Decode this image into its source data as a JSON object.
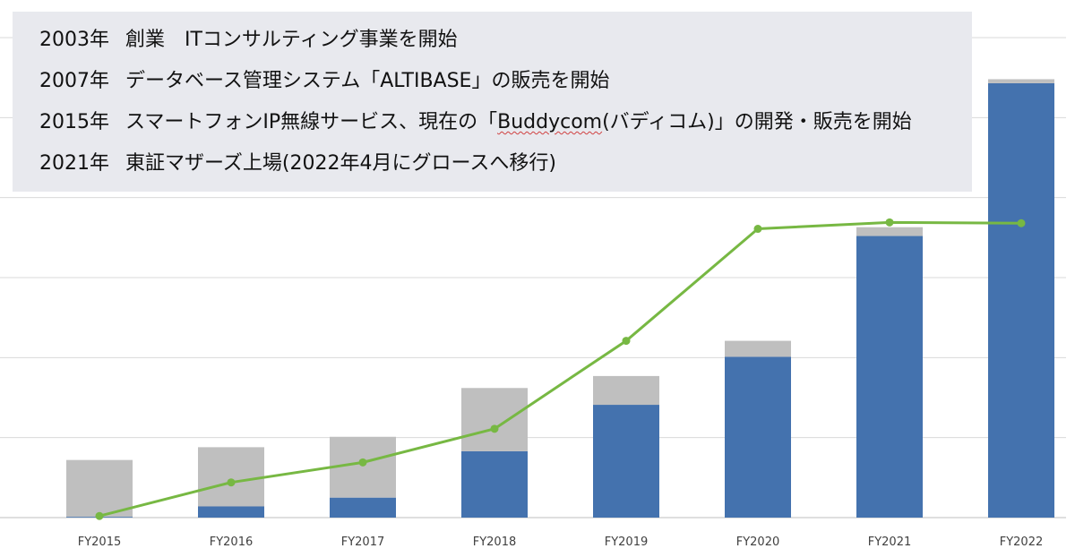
{
  "history": [
    {
      "year": "2003年",
      "text": "創業　ITコンサルティング事業を開始"
    },
    {
      "year": "2007年",
      "text": "データベース管理システム「ALTIBASE」の販売を開始"
    },
    {
      "year": "2015年",
      "text_before": "スマートフォンIP無線サービス、現在の「",
      "text_marked": "Buddycom",
      "text_after": "(バディコム)」の開発・販売を開始"
    },
    {
      "year": "2021年",
      "text": "東証マザーズ上場(2022年4月にグロースへ移行)"
    }
  ],
  "chart_data": {
    "type": "bar",
    "stacked": true,
    "categories": [
      "FY2015",
      "FY2016",
      "FY2017",
      "FY2018",
      "FY2019",
      "FY2020",
      "FY2021",
      "FY2022"
    ],
    "series": [
      {
        "kind": "bar",
        "color": "#4472ae",
        "values": [
          0.1,
          1.4,
          2.5,
          8.3,
          14.1,
          20.1,
          35.2,
          54.3
        ]
      },
      {
        "kind": "bar",
        "color": "#bfbfbf",
        "values": [
          7.1,
          7.4,
          7.6,
          7.9,
          3.6,
          2.0,
          1.1,
          0.5
        ]
      },
      {
        "kind": "line",
        "color": "#77b843",
        "values": [
          0.2,
          4.4,
          6.9,
          11.1,
          22.1,
          36.1,
          36.9,
          36.8
        ]
      }
    ],
    "ylim": [
      0,
      60
    ],
    "grid": true,
    "legend": "none"
  }
}
